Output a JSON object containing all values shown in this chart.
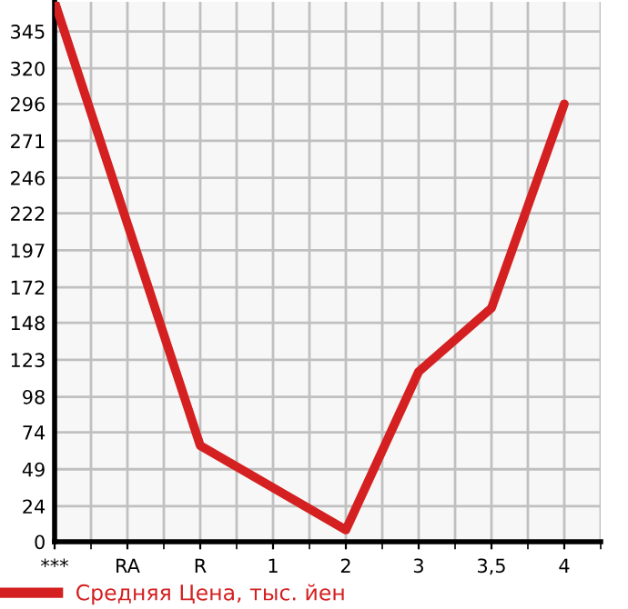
{
  "chart_data": {
    "type": "line",
    "categories": [
      "***",
      "RA",
      "R",
      "1",
      "2",
      "3",
      "3,5",
      "4"
    ],
    "series": [
      {
        "name": "Средняя Цена, тыс. йен",
        "color": "#d42020",
        "values": [
          365,
          null,
          65,
          null,
          8,
          115,
          158,
          296
        ]
      }
    ],
    "ylim": [
      0,
      365
    ],
    "yticks": [
      0,
      24,
      49,
      74,
      98,
      123,
      148,
      172,
      197,
      222,
      246,
      271,
      296,
      320,
      345
    ],
    "grid": true,
    "legend": "bottom left",
    "marker": "none",
    "line_style": "solid"
  }
}
